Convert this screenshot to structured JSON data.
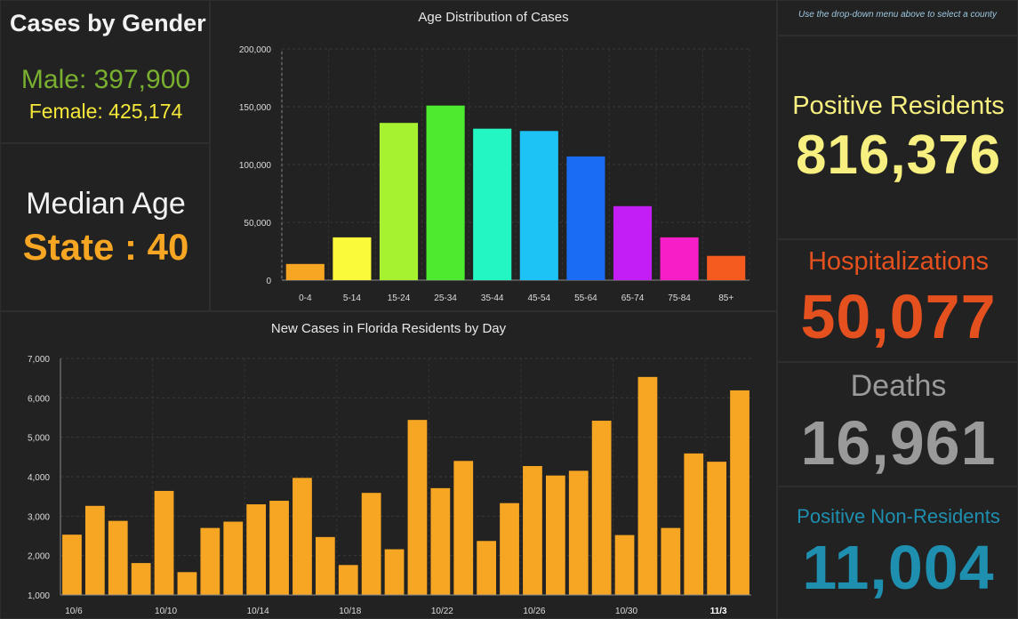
{
  "gender": {
    "title": "Cases by Gender",
    "male": "Male: 397,900",
    "female": "Female: 425,174"
  },
  "median": {
    "label": "Median Age",
    "value": "State : 40"
  },
  "note": "Use the drop-down menu above to select a county",
  "kpis": {
    "positive_residents": {
      "label": "Positive Residents",
      "value": "816,376",
      "color": "#f7f080"
    },
    "hospitalizations": {
      "label": "Hospitalizations",
      "value": "50,077",
      "color": "#e5501f"
    },
    "deaths": {
      "label": "Deaths",
      "value": "16,961",
      "color": "#9a9a9a"
    },
    "non_residents": {
      "label": "Positive Non-Residents",
      "value": "11,004",
      "color": "#1f8fb0"
    }
  },
  "chart_data": [
    {
      "type": "bar",
      "title": "Age Distribution of Cases",
      "categories": [
        "0-4",
        "5-14",
        "15-24",
        "25-34",
        "35-44",
        "45-54",
        "55-64",
        "65-74",
        "75-84",
        "85+"
      ],
      "values": [
        14000,
        37000,
        136000,
        151000,
        131000,
        129000,
        107000,
        64000,
        37000,
        21000
      ],
      "colors": [
        "#f6a623",
        "#fafa3a",
        "#a6f230",
        "#4dea30",
        "#23f5c3",
        "#1ec3f5",
        "#1a6cf5",
        "#c21ef5",
        "#f51ec7",
        "#f55a1e"
      ],
      "ylim": [
        0,
        200000
      ],
      "yticks": [
        "0",
        "50,000",
        "100,000",
        "150,000",
        "200,000"
      ],
      "ytick_values": [
        0,
        50000,
        100000,
        150000,
        200000
      ],
      "grid": true
    },
    {
      "type": "bar",
      "title": "New Cases in Florida Residents by Day",
      "categories": [
        "10/6",
        "10/7",
        "10/8",
        "10/9",
        "10/10",
        "10/11",
        "10/12",
        "10/13",
        "10/14",
        "10/15",
        "10/16",
        "10/17",
        "10/18",
        "10/19",
        "10/20",
        "10/21",
        "10/22",
        "10/23",
        "10/24",
        "10/25",
        "10/26",
        "10/27",
        "10/28",
        "10/29",
        "10/30",
        "10/31",
        "11/1",
        "11/2",
        "11/3",
        "11/4"
      ],
      "values": [
        2530,
        3260,
        2880,
        1810,
        3640,
        1580,
        2700,
        2860,
        3300,
        3390,
        3970,
        2470,
        1760,
        3590,
        2160,
        5440,
        3710,
        4400,
        2370,
        3330,
        4270,
        4030,
        4150,
        5420,
        2520,
        6530,
        2700,
        4590,
        4380,
        6190
      ],
      "xtick_labels": [
        "10/6",
        "10/10",
        "10/14",
        "10/18",
        "10/22",
        "10/26",
        "10/30",
        "11/3"
      ],
      "xtick_indices": [
        0,
        4,
        8,
        12,
        16,
        20,
        24,
        28
      ],
      "ylim": [
        1000,
        7000
      ],
      "yticks": [
        "1,000",
        "2,000",
        "3,000",
        "4,000",
        "5,000",
        "6,000",
        "7,000"
      ],
      "ytick_values": [
        1000,
        2000,
        3000,
        4000,
        5000,
        6000,
        7000
      ],
      "bar_color": "#f6a623",
      "grid": true
    }
  ]
}
